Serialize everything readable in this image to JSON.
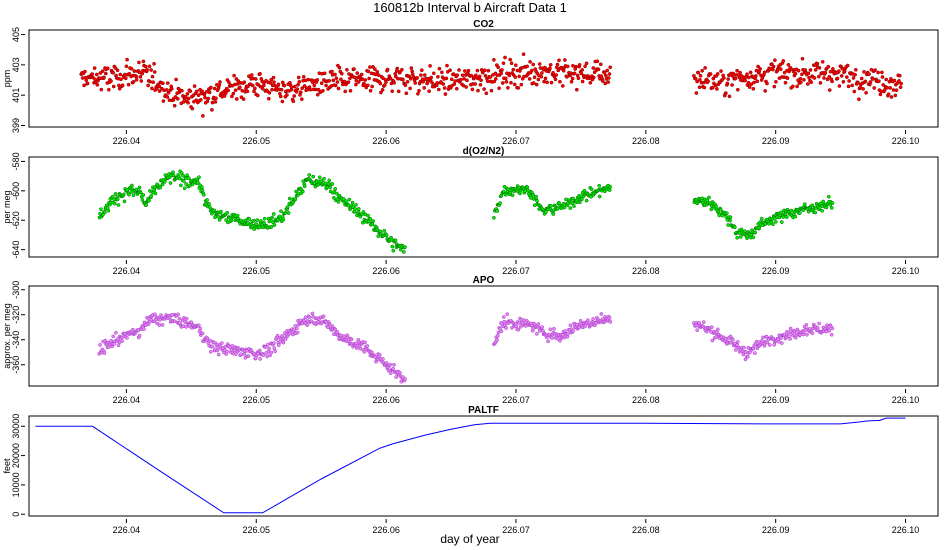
{
  "figure": {
    "title": "160812b   Interval b Aircraft Data 1",
    "xlabel": "day of year"
  },
  "chart_data": [
    {
      "type": "scatter",
      "title": "CO2",
      "ylabel": "ppm",
      "xlim": [
        226.0325,
        226.1025
      ],
      "ylim": [
        398.9,
        405.3
      ],
      "xticks": [
        "226.04",
        "226.05",
        "226.06",
        "226.07",
        "226.08",
        "226.09",
        "226.10"
      ],
      "yticks": [
        "399",
        "401",
        "403",
        "405"
      ],
      "marker_color": "#ff0000",
      "marker_edge": "#800000",
      "segments": [
        {
          "x_start": 226.0365,
          "x_end": 226.0773,
          "noise": 0.75,
          "trend": [
            [
              226.0365,
              402.1
            ],
            [
              226.039,
              402.1
            ],
            [
              226.0405,
              402.4
            ],
            [
              226.042,
              402.2
            ],
            [
              226.043,
              401.4
            ],
            [
              226.0445,
              400.8
            ],
            [
              226.046,
              401.0
            ],
            [
              226.048,
              401.4
            ],
            [
              226.05,
              401.8
            ],
            [
              226.052,
              401.3
            ],
            [
              226.054,
              401.6
            ],
            [
              226.056,
              401.9
            ],
            [
              226.058,
              402.0
            ],
            [
              226.06,
              402.1
            ],
            [
              226.062,
              402.1
            ],
            [
              226.064,
              401.9
            ],
            [
              226.066,
              402.0
            ],
            [
              226.068,
              402.3
            ],
            [
              226.07,
              402.5
            ],
            [
              226.072,
              402.6
            ],
            [
              226.074,
              402.4
            ],
            [
              226.0773,
              402.4
            ]
          ]
        },
        {
          "x_start": 226.0837,
          "x_end": 226.0997,
          "noise": 0.75,
          "trend": [
            [
              226.0837,
              402.1
            ],
            [
              226.086,
              401.8
            ],
            [
              226.088,
              402.3
            ],
            [
              226.09,
              402.5
            ],
            [
              226.092,
              402.4
            ],
            [
              226.094,
              402.5
            ],
            [
              226.096,
              402.2
            ],
            [
              226.0997,
              401.7
            ]
          ]
        }
      ]
    },
    {
      "type": "scatter",
      "title": "d(O2/N2)",
      "ylabel": "per meg",
      "xlim": [
        226.0325,
        226.1025
      ],
      "ylim": [
        -645,
        -577
      ],
      "xticks": [
        "226.04",
        "226.05",
        "226.06",
        "226.07",
        "226.08",
        "226.09",
        "226.10"
      ],
      "yticks": [
        "-580",
        "-600",
        "-620",
        "-640"
      ],
      "marker_color": "#00ee00",
      "marker_edge": "#006400",
      "segments": [
        {
          "x_start": 226.0379,
          "x_end": 226.0615,
          "noise": 3.5,
          "trend": [
            [
              226.0379,
              -617
            ],
            [
              226.039,
              -606
            ],
            [
              226.04,
              -601
            ],
            [
              226.041,
              -600
            ],
            [
              226.0415,
              -609
            ],
            [
              226.0425,
              -596
            ],
            [
              226.0435,
              -590
            ],
            [
              226.0445,
              -593
            ],
            [
              226.0455,
              -593
            ],
            [
              226.0465,
              -615
            ],
            [
              226.048,
              -618
            ],
            [
              226.05,
              -623
            ],
            [
              226.051,
              -622
            ],
            [
              226.052,
              -618
            ],
            [
              226.053,
              -604
            ],
            [
              226.054,
              -593
            ],
            [
              226.0555,
              -595
            ],
            [
              226.0565,
              -606
            ],
            [
              226.0575,
              -612
            ],
            [
              226.0585,
              -619
            ],
            [
              226.0595,
              -628
            ],
            [
              226.0605,
              -635
            ],
            [
              226.0615,
              -641
            ]
          ]
        },
        {
          "x_start": 226.0683,
          "x_end": 226.0773,
          "noise": 3.0,
          "trend": [
            [
              226.0683,
              -617
            ],
            [
              226.069,
              -600
            ],
            [
              226.07,
              -599
            ],
            [
              226.071,
              -599
            ],
            [
              226.072,
              -614
            ],
            [
              226.073,
              -612
            ],
            [
              226.074,
              -609
            ],
            [
              226.075,
              -604
            ],
            [
              226.076,
              -601
            ],
            [
              226.0773,
              -598
            ]
          ]
        },
        {
          "x_start": 226.0837,
          "x_end": 226.0944,
          "noise": 3.0,
          "trend": [
            [
              226.0837,
              -606
            ],
            [
              226.085,
              -608
            ],
            [
              226.0865,
              -620
            ],
            [
              226.087,
              -628
            ],
            [
              226.088,
              -630
            ],
            [
              226.0892,
              -621
            ],
            [
              226.091,
              -615
            ],
            [
              226.0925,
              -612
            ],
            [
              226.0944,
              -608
            ]
          ]
        }
      ]
    },
    {
      "type": "scatter",
      "title": "APO",
      "ylabel": "approx. per meg",
      "xlim": [
        226.0325,
        226.1025
      ],
      "ylim": [
        -377,
        -297
      ],
      "xticks": [
        "226.04",
        "226.05",
        "226.06",
        "226.07",
        "226.08",
        "226.09",
        "226.10"
      ],
      "yticks": [
        "-300",
        "-320",
        "-340",
        "-360"
      ],
      "marker_color": "#ee82ee",
      "marker_edge": "#9a3fcf",
      "segments": [
        {
          "x_start": 226.0379,
          "x_end": 226.0615,
          "noise": 4.0,
          "trend": [
            [
              226.0379,
              -349
            ],
            [
              226.0395,
              -338
            ],
            [
              226.041,
              -333
            ],
            [
              226.042,
              -323
            ],
            [
              226.0435,
              -323
            ],
            [
              226.0455,
              -330
            ],
            [
              226.0465,
              -345
            ],
            [
              226.048,
              -348
            ],
            [
              226.05,
              -351
            ],
            [
              226.051,
              -348
            ],
            [
              226.052,
              -340
            ],
            [
              226.0535,
              -326
            ],
            [
              226.0545,
              -322
            ],
            [
              226.0555,
              -327
            ],
            [
              226.0565,
              -338
            ],
            [
              226.058,
              -344
            ],
            [
              226.0595,
              -356
            ],
            [
              226.0605,
              -364
            ],
            [
              226.0615,
              -371
            ]
          ]
        },
        {
          "x_start": 226.0683,
          "x_end": 226.0773,
          "noise": 4.0,
          "trend": [
            [
              226.0683,
              -345
            ],
            [
              226.069,
              -326
            ],
            [
              226.0705,
              -327
            ],
            [
              226.0715,
              -330
            ],
            [
              226.072,
              -334
            ],
            [
              226.0735,
              -337
            ],
            [
              226.0745,
              -330
            ],
            [
              226.076,
              -325
            ],
            [
              226.0773,
              -323
            ]
          ]
        },
        {
          "x_start": 226.0837,
          "x_end": 226.0944,
          "noise": 4.0,
          "trend": [
            [
              226.0837,
              -326
            ],
            [
              226.085,
              -333
            ],
            [
              226.0865,
              -342
            ],
            [
              226.0875,
              -348
            ],
            [
              226.088,
              -350
            ],
            [
              226.0895,
              -339
            ],
            [
              226.091,
              -336
            ],
            [
              226.0925,
              -331
            ],
            [
              226.0944,
              -332
            ]
          ]
        }
      ]
    },
    {
      "type": "line",
      "title": "PALTF",
      "ylabel": "feet",
      "xlim": [
        226.0325,
        226.1025
      ],
      "ylim": [
        -600,
        33500
      ],
      "xticks": [
        "226.04",
        "226.05",
        "226.06",
        "226.07",
        "226.08",
        "226.09",
        "226.10"
      ],
      "yticks": [
        "0",
        "10000",
        "20000",
        "30000"
      ],
      "line_color": "#0000ff",
      "x": [
        226.033,
        226.0374,
        226.0425,
        226.0475,
        226.049,
        226.0505,
        226.055,
        226.0595,
        226.0605,
        226.063,
        226.065,
        226.0668,
        226.068,
        226.07,
        226.08,
        226.09,
        226.095,
        226.0965,
        226.097,
        226.098,
        226.0985,
        226.1
      ],
      "y": [
        30000,
        30000,
        15000,
        500,
        500,
        500,
        12000,
        22500,
        24000,
        27000,
        29000,
        30500,
        31000,
        31000,
        31000,
        30800,
        30800,
        31500,
        31800,
        32000,
        32800,
        32800
      ]
    }
  ]
}
